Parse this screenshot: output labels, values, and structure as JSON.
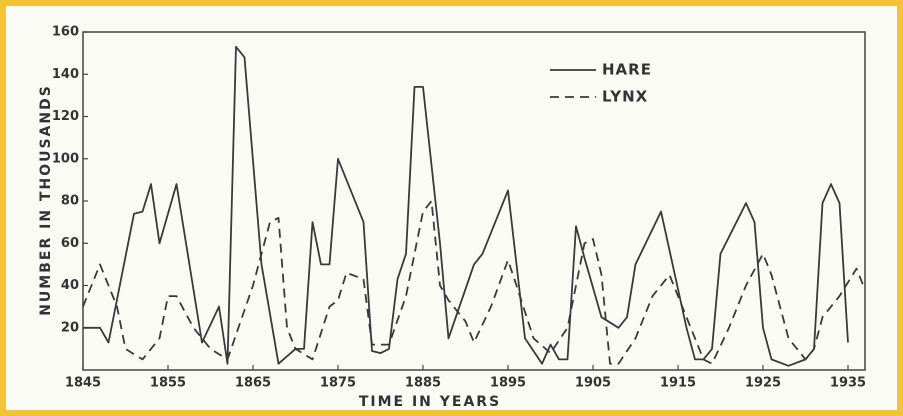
{
  "chart_data": {
    "type": "line",
    "xlabel": "TIME IN YEARS",
    "ylabel": "NUMBER IN THOUSANDS",
    "xlim": [
      1845,
      1937
    ],
    "xticks": [
      1845,
      1855,
      1865,
      1875,
      1885,
      1895,
      1905,
      1915,
      1925,
      1935
    ],
    "ylim": [
      0,
      160
    ],
    "yticks": [
      20,
      40,
      60,
      80,
      100,
      120,
      140,
      160
    ],
    "legend": "upper-right",
    "series": [
      {
        "name": "HARE",
        "color": "#3a3a3a",
        "style": "solid",
        "x": [
          1845,
          1847,
          1848,
          1851,
          1852,
          1853,
          1854,
          1856,
          1859,
          1861,
          1862,
          1863,
          1864,
          1866,
          1868,
          1870,
          1871,
          1872,
          1873,
          1874,
          1875,
          1878,
          1879,
          1880,
          1881,
          1882,
          1883,
          1884,
          1885,
          1887,
          1888,
          1891,
          1892,
          1895,
          1897,
          1899,
          1900,
          1901,
          1902,
          1903,
          1904,
          1906,
          1908,
          1909,
          1910,
          1913,
          1916,
          1917,
          1918,
          1919,
          1920,
          1923,
          1924,
          1925,
          1926,
          1928,
          1930,
          1931,
          1932,
          1933,
          1934,
          1935
        ],
        "values": [
          20,
          20,
          13,
          74,
          75,
          88,
          60,
          88,
          13,
          30,
          3,
          153,
          148,
          50,
          3,
          10,
          10,
          70,
          50,
          50,
          100,
          70,
          9,
          8,
          10,
          43,
          55,
          134,
          134,
          60,
          15,
          50,
          55,
          85,
          15,
          3,
          12,
          5,
          5,
          68,
          53,
          25,
          20,
          25,
          50,
          75,
          20,
          5,
          5,
          10,
          55,
          79,
          70,
          20,
          5,
          2,
          5,
          10,
          79,
          88,
          79,
          13
        ]
      },
      {
        "name": "LYNX",
        "color": "#3a3a3a",
        "style": "dashed",
        "x": [
          1845,
          1847,
          1849,
          1850,
          1852,
          1854,
          1855,
          1856,
          1858,
          1860,
          1862,
          1865,
          1867,
          1868,
          1869,
          1870,
          1872,
          1874,
          1875,
          1876,
          1878,
          1879,
          1881,
          1883,
          1884,
          1885,
          1886,
          1887,
          1888,
          1890,
          1891,
          1893,
          1895,
          1896,
          1898,
          1900,
          1902,
          1903,
          1904,
          1905,
          1906,
          1907,
          1908,
          1910,
          1912,
          1914,
          1916,
          1918,
          1919,
          1921,
          1923,
          1925,
          1926,
          1928,
          1930,
          1931,
          1932,
          1934,
          1936,
          1937
        ],
        "values": [
          30,
          50,
          30,
          10,
          5,
          15,
          35,
          35,
          20,
          10,
          5,
          40,
          70,
          72,
          20,
          10,
          5,
          30,
          33,
          46,
          43,
          12,
          12,
          35,
          55,
          75,
          80,
          40,
          33,
          23,
          13,
          30,
          52,
          40,
          15,
          8,
          20,
          40,
          60,
          62,
          45,
          3,
          3,
          15,
          35,
          45,
          25,
          5,
          3,
          20,
          40,
          55,
          45,
          15,
          5,
          10,
          25,
          35,
          48,
          38
        ]
      }
    ]
  }
}
